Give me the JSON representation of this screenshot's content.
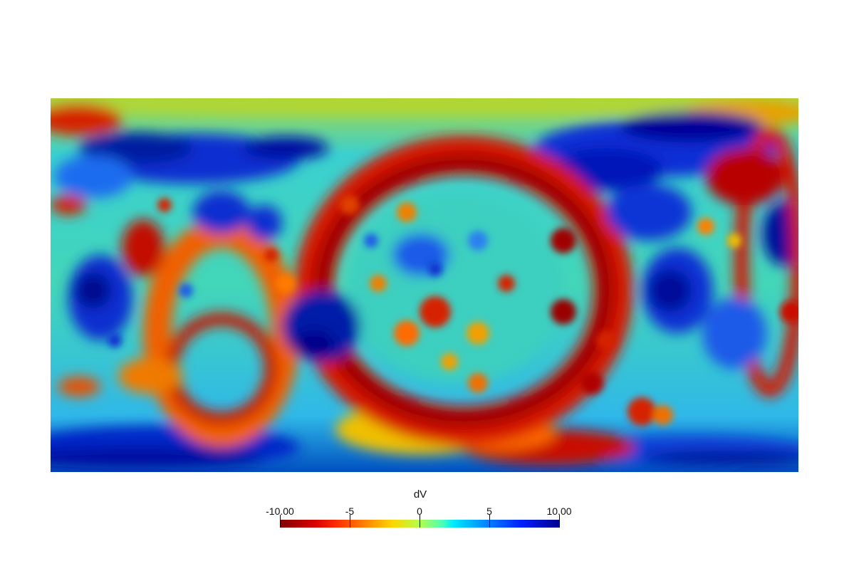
{
  "colorbar": {
    "title": "dV",
    "min_label": "-10.00",
    "max_label": "10.00",
    "ticks": [
      "-10.00",
      "-5",
      "0",
      "5",
      "10.00"
    ],
    "tick_values": [
      -10,
      -5,
      0,
      5,
      10
    ],
    "range": [
      -10,
      10
    ],
    "colormap": "jet (inverted: red negative, blue positive)"
  },
  "colors": {
    "background": "#ffffff",
    "strong_negative": "#8b0000",
    "negative": "#ff2a00",
    "neutral": "#b8e04a",
    "positive": "#00c8e0",
    "strong_positive": "#00008f"
  },
  "map": {
    "projection": "equirectangular global map",
    "field": "dV"
  }
}
